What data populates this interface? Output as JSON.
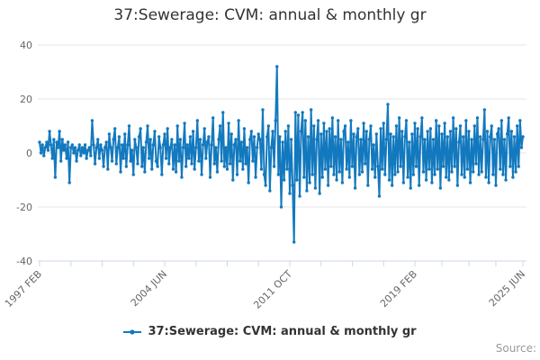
{
  "chart": {
    "title": "37:Sewerage: CVM: annual & monthly gr",
    "source_label": "Source:",
    "legend": {
      "label": "37:Sewerage: CVM: annual & monthly gr"
    }
  },
  "chart_data": {
    "type": "line",
    "title": "37:Sewerage: CVM: annual & monthly gr",
    "xlabel": "",
    "ylabel": "",
    "ylim": [
      -40,
      40
    ],
    "yticks": [
      40,
      20,
      0,
      -20,
      -40
    ],
    "grid": true,
    "legend_position": "bottom",
    "x_start_label": "1997 FEB",
    "x_end_label": "2025 JUN",
    "frequency": "monthly",
    "xticks": [
      {
        "m": 0,
        "label": "1997 FEB"
      },
      {
        "m": 22,
        "label": ""
      },
      {
        "m": 44,
        "label": ""
      },
      {
        "m": 66,
        "label": ""
      },
      {
        "m": 88,
        "label": "2004 JUN"
      },
      {
        "m": 110,
        "label": ""
      },
      {
        "m": 132,
        "label": ""
      },
      {
        "m": 154,
        "label": ""
      },
      {
        "m": 176,
        "label": "2011 OCT"
      },
      {
        "m": 198,
        "label": ""
      },
      {
        "m": 220,
        "label": ""
      },
      {
        "m": 242,
        "label": ""
      },
      {
        "m": 264,
        "label": "2019 FEB"
      },
      {
        "m": 283,
        "label": ""
      },
      {
        "m": 302,
        "label": ""
      },
      {
        "m": 321,
        "label": ""
      },
      {
        "m": 340,
        "label": "2025 JUN"
      }
    ],
    "colors": {
      "series": "#1379be",
      "grid": "#e6e6e6",
      "axis": "#ccd6eb",
      "tick_label": "#666666",
      "title": "#333333",
      "source": "#999999"
    },
    "series": [
      {
        "name": "37:Sewerage: CVM: annual & monthly gr",
        "color": "#1379be",
        "start": "1997 FEB",
        "end": "2025 JUN",
        "values": [
          4,
          0,
          3,
          -1,
          2,
          4,
          1,
          8,
          3,
          -2,
          5,
          -9,
          4,
          2,
          8,
          -3,
          5,
          1,
          3,
          -2,
          4,
          -11,
          2,
          3,
          0,
          2,
          -3,
          1,
          3,
          -1,
          2,
          0,
          3,
          -2,
          1,
          2,
          -1,
          12,
          3,
          -4,
          2,
          5,
          -2,
          3,
          1,
          -5,
          2,
          4,
          -6,
          7,
          2,
          -3,
          5,
          9,
          -4,
          2,
          6,
          -7,
          3,
          -2,
          7,
          -5,
          3,
          10,
          -3,
          1,
          -8,
          5,
          2,
          -4,
          6,
          9,
          -5,
          2,
          -7,
          4,
          10,
          -2,
          5,
          -6,
          3,
          8,
          -3,
          -5,
          6,
          2,
          -8,
          3,
          7,
          -2,
          9,
          -4,
          2,
          5,
          -6,
          3,
          -7,
          10,
          -3,
          5,
          -9,
          2,
          11,
          -5,
          3,
          -2,
          6,
          -4,
          8,
          -6,
          2,
          12,
          -3,
          5,
          -8,
          3,
          9,
          -2,
          4,
          6,
          -9,
          3,
          13,
          -4,
          2,
          -7,
          5,
          10,
          -3,
          15,
          -5,
          2,
          -6,
          11,
          -4,
          7,
          -10,
          3,
          5,
          -8,
          12,
          -3,
          4,
          -6,
          9,
          -4,
          2,
          -11,
          5,
          8,
          -3,
          6,
          -9,
          2,
          7,
          5,
          -6,
          16,
          -8,
          -12,
          6,
          10,
          -14,
          2,
          8,
          -5,
          12,
          32,
          -8,
          6,
          -20,
          4,
          -10,
          8,
          -6,
          10,
          -15,
          5,
          -12,
          -33,
          15,
          -10,
          14,
          -16,
          8,
          15,
          -9,
          12,
          -14,
          6,
          -11,
          16,
          -8,
          10,
          -13,
          5,
          12,
          -15,
          7,
          -9,
          11,
          -6,
          8,
          -12,
          9,
          -5,
          13,
          -8,
          6,
          -10,
          12,
          -7,
          5,
          -11,
          8,
          10,
          -6,
          4,
          -9,
          12,
          -5,
          7,
          -13,
          6,
          9,
          -8,
          5,
          -7,
          11,
          -4,
          8,
          -12,
          5,
          10,
          -6,
          3,
          -9,
          7,
          -5,
          -16,
          9,
          -6,
          11,
          -8,
          5,
          18,
          -10,
          7,
          -12,
          6,
          -8,
          10,
          -7,
          13,
          -5,
          8,
          -11,
          6,
          12,
          -9,
          4,
          -13,
          7,
          -8,
          11,
          -5,
          9,
          -12,
          6,
          13,
          -7,
          5,
          -10,
          8,
          -6,
          9,
          -11,
          5,
          -8,
          12,
          -6,
          10,
          -13,
          7,
          -5,
          11,
          -9,
          6,
          -10,
          8,
          -7,
          13,
          -5,
          9,
          -12,
          4,
          10,
          -8,
          6,
          -9,
          12,
          -6,
          8,
          -11,
          5,
          -7,
          10,
          -4,
          13,
          -8,
          6,
          -7,
          5,
          16,
          -9,
          8,
          -11,
          6,
          10,
          -8,
          5,
          -12,
          7,
          9,
          -6,
          12,
          -8,
          5,
          -10,
          7,
          13,
          -5,
          8,
          -9,
          6,
          -7,
          10,
          -5,
          12,
          2,
          6
        ]
      }
    ]
  }
}
